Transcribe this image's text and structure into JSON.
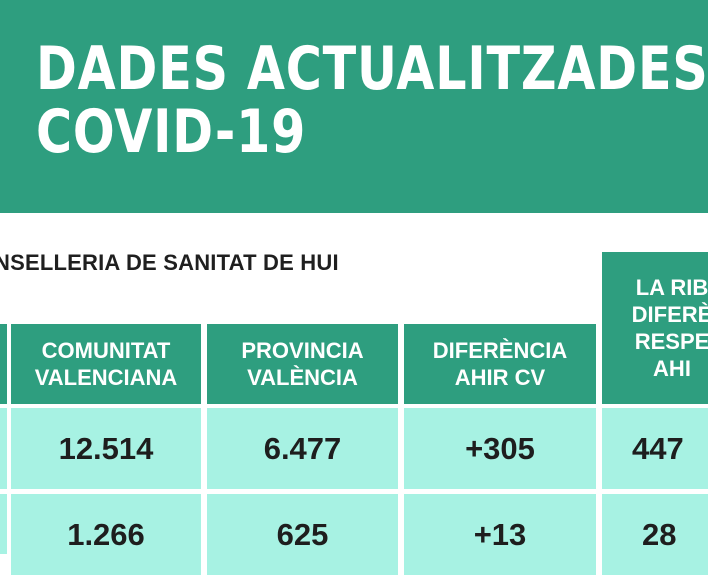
{
  "banner": {
    "title_line1": "DADES ACTUALITZADES",
    "title_line2": "COVID-19"
  },
  "subtitle": "NSELLERIA DE SANITAT DE HUI",
  "table": {
    "headers": [
      "COMUNITAT\nVALENCIANA",
      "PROVINCIA\nVALÈNCIA",
      "DIFERÈNCIA\nAHIR CV",
      "LA RIB\nDIFERÈ\nRESPE\nAHI"
    ],
    "row1": [
      "12.514",
      "6.477",
      "+305",
      "447"
    ],
    "row2": [
      "1.266",
      "625",
      "+13",
      "28"
    ]
  },
  "colors": {
    "banner": "#2e9e7f",
    "header_cell": "#2e9e7f",
    "value_cell": "#a7f2e3"
  }
}
